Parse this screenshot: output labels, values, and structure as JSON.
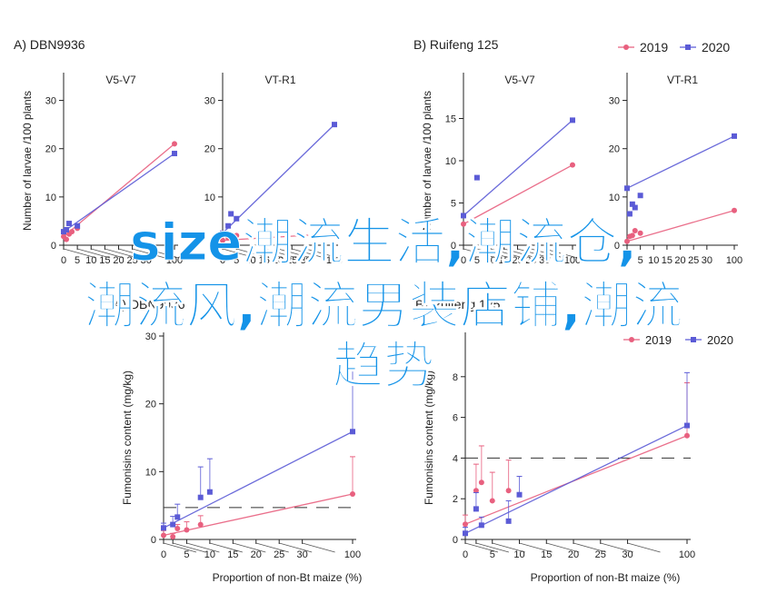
{
  "colors": {
    "series_2019": "#e8607f",
    "series_2020": "#5b5bd6",
    "axis": "#222222",
    "error": "#9a9a9a",
    "overlay_text": "#1493e8"
  },
  "overlay": {
    "line1": "size潮流生活,潮流仓,",
    "line2": "潮流风,潮流男装店铺,潮流",
    "line3": "趋势"
  },
  "legend": {
    "s2019": "2019",
    "s2020": "2020"
  },
  "chart_data": [
    {
      "type": "scatter",
      "panel": "A",
      "title": "DBN9936",
      "subtitle": "V5-V7",
      "ylabel": "Number of larvae /100 plants",
      "ylim": [
        0,
        35
      ],
      "y_ticks": [
        0,
        10,
        20,
        30
      ],
      "x_ticks": [
        0,
        5,
        10,
        15,
        20,
        25,
        30,
        100
      ],
      "series": [
        {
          "name": "2019",
          "x": [
            0,
            1,
            2,
            3,
            5,
            100
          ],
          "y": [
            1.8,
            1.2,
            2.3,
            2.8,
            3.5,
            21.0
          ]
        },
        {
          "name": "2020",
          "x": [
            0,
            1,
            2,
            5,
            100
          ],
          "y": [
            2.8,
            3.2,
            4.5,
            4.0,
            19.0
          ]
        }
      ]
    },
    {
      "type": "scatter",
      "panel": "A",
      "subtitle": "VT-R1",
      "ylim": [
        0,
        35
      ],
      "y_ticks": [
        0,
        10,
        20,
        30
      ],
      "x_ticks": [
        0,
        5,
        10,
        15,
        20,
        25,
        30,
        100
      ],
      "series": [
        {
          "name": "2019",
          "x": [
            0,
            2,
            5,
            100
          ],
          "y": [
            1.0,
            1.5,
            2.0,
            2.4
          ]
        },
        {
          "name": "2020",
          "x": [
            0,
            2,
            3,
            5,
            100
          ],
          "y": [
            2.5,
            4.0,
            6.5,
            5.5,
            25.0
          ]
        }
      ]
    },
    {
      "type": "scatter",
      "panel": "B",
      "title": "Ruifeng 125",
      "subtitle": "V5-V7",
      "ylabel": "Number of larvae /100 plants",
      "ylim": [
        0,
        20
      ],
      "y_ticks": [
        0,
        5,
        10,
        15
      ],
      "x_ticks": [
        0,
        5,
        10,
        15,
        20,
        25,
        30,
        100
      ],
      "series": [
        {
          "name": "2019",
          "x": [
            0,
            3,
            100
          ],
          "y": [
            2.5,
            3.0,
            9.5
          ]
        },
        {
          "name": "2020",
          "x": [
            0,
            5,
            100
          ],
          "y": [
            3.5,
            8.0,
            14.8
          ]
        }
      ]
    },
    {
      "type": "scatter",
      "panel": "B",
      "subtitle": "VT-R1",
      "ylim": [
        0,
        35
      ],
      "y_ticks": [
        0,
        10,
        20,
        30
      ],
      "x_ticks": [
        0,
        5,
        10,
        15,
        20,
        25,
        30,
        100
      ],
      "x_tick_labels": [
        "0",
        "5",
        "10",
        "15",
        "20",
        "25",
        "30",
        "100"
      ],
      "series": [
        {
          "name": "2019",
          "x": [
            0,
            1,
            2,
            3,
            5,
            100
          ],
          "y": [
            0.8,
            1.8,
            2.0,
            3.0,
            2.5,
            7.2
          ]
        },
        {
          "name": "2020",
          "x": [
            0,
            1,
            2,
            3,
            5,
            100
          ],
          "y": [
            11.8,
            6.5,
            8.5,
            7.8,
            10.3,
            22.6
          ]
        }
      ]
    },
    {
      "type": "scatter",
      "panel": "C",
      "title": "DBN9936",
      "ylabel": "Fumonisins content (mg/kg)",
      "xlabel": "Proportion of non-Bt maize (%)",
      "ylim": [
        0,
        30
      ],
      "y_ticks": [
        0,
        10,
        20,
        30
      ],
      "x_ticks": [
        0,
        2,
        5,
        10,
        15,
        20,
        25,
        30,
        100
      ],
      "x_tick_labels": [
        "0",
        "",
        "5",
        "10",
        "15",
        "20",
        "25",
        "30",
        "100"
      ],
      "reference_line_y": 4.7,
      "series": [
        {
          "name": "2019",
          "x": [
            0,
            2,
            3,
            5,
            8,
            100
          ],
          "y": [
            0.6,
            0.4,
            1.6,
            1.4,
            2.2,
            6.7
          ]
        },
        {
          "name": "2020",
          "x": [
            0,
            2,
            3,
            8,
            10,
            100
          ],
          "y": [
            1.7,
            2.2,
            3.3,
            6.2,
            7.0,
            15.9
          ]
        }
      ],
      "error_upper": {
        "2019": [
          1.3,
          0.9,
          2.2,
          2.6,
          3.5,
          12.2
        ],
        "2020": [
          2.4,
          3.4,
          5.2,
          10.7,
          11.9,
          25.1
        ]
      }
    },
    {
      "type": "scatter",
      "panel": "D",
      "title": "Ruifeng 125",
      "ylabel": "Fumonisins content (mg/kg)",
      "xlabel": "Proportion of non-Bt maize (%)",
      "ylim": [
        0,
        10
      ],
      "y_ticks": [
        0,
        2,
        4,
        6,
        8
      ],
      "x_ticks": [
        0,
        2,
        5,
        10,
        15,
        20,
        25,
        30,
        100
      ],
      "x_tick_labels": [
        "0",
        "",
        "5",
        "10",
        "15",
        "20",
        "25",
        "30",
        "100"
      ],
      "reference_line_y": 4.0,
      "series": [
        {
          "name": "2019",
          "x": [
            0,
            2,
            3,
            5,
            8,
            100
          ],
          "y": [
            0.75,
            2.4,
            2.8,
            1.9,
            2.4,
            5.1
          ]
        },
        {
          "name": "2020",
          "x": [
            0,
            2,
            3,
            8,
            10,
            100
          ],
          "y": [
            0.3,
            1.5,
            0.7,
            0.9,
            2.2,
            5.6
          ]
        }
      ],
      "error_upper": {
        "2019": [
          1.2,
          3.7,
          4.6,
          3.3,
          3.9,
          7.7
        ],
        "2020": [
          0.6,
          2.3,
          1.1,
          1.9,
          3.1,
          8.2
        ]
      }
    }
  ]
}
